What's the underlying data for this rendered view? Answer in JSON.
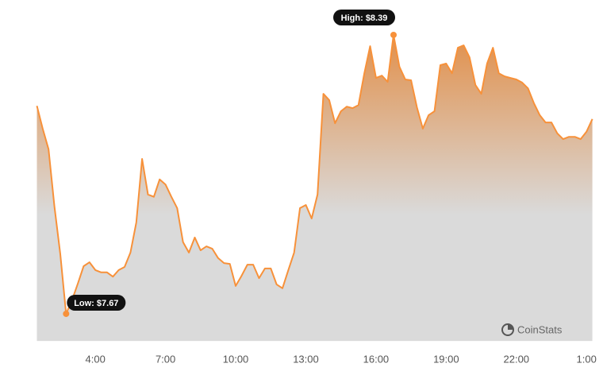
{
  "chart_data": {
    "type": "area",
    "x": [
      1.5,
      1.75,
      2,
      2.25,
      2.5,
      2.75,
      3,
      3.25,
      3.5,
      3.75,
      4,
      4.25,
      4.5,
      4.75,
      5,
      5.25,
      5.5,
      5.75,
      6,
      6.25,
      6.5,
      6.75,
      7,
      7.25,
      7.5,
      7.75,
      8,
      8.25,
      8.5,
      8.75,
      9,
      9.25,
      9.5,
      9.75,
      10,
      10.25,
      10.5,
      10.75,
      11,
      11.25,
      11.5,
      11.75,
      12,
      12.25,
      12.5,
      12.75,
      13,
      13.25,
      13.5,
      13.75,
      14,
      14.25,
      14.5,
      14.75,
      15,
      15.25,
      15.5,
      15.75,
      16,
      16.25,
      16.5,
      16.75,
      17,
      17.25,
      17.5,
      17.75,
      18,
      18.25,
      18.5,
      18.75,
      19,
      19.25,
      19.5,
      19.75,
      20,
      20.25,
      20.5,
      20.75,
      21,
      21.25,
      21.5,
      21.75,
      22,
      22.25,
      22.5,
      22.75,
      23,
      23.25,
      23.5,
      23.75,
      24,
      24.25,
      24.5,
      24.75,
      25,
      25.25
    ],
    "values": [
      8.207,
      8.148,
      8.095,
      7.947,
      7.824,
      7.67,
      7.705,
      7.748,
      7.793,
      7.803,
      7.783,
      7.777,
      7.777,
      7.766,
      7.783,
      7.791,
      7.828,
      7.906,
      8.07,
      7.978,
      7.972,
      8.017,
      8.004,
      7.972,
      7.943,
      7.855,
      7.828,
      7.867,
      7.834,
      7.844,
      7.838,
      7.814,
      7.801,
      7.799,
      7.742,
      7.768,
      7.797,
      7.797,
      7.762,
      7.787,
      7.787,
      7.746,
      7.736,
      7.783,
      7.828,
      7.943,
      7.951,
      7.916,
      7.978,
      8.238,
      8.222,
      8.162,
      8.193,
      8.205,
      8.201,
      8.209,
      8.291,
      8.361,
      8.279,
      8.285,
      8.269,
      8.39,
      8.308,
      8.275,
      8.273,
      8.203,
      8.148,
      8.183,
      8.193,
      8.312,
      8.316,
      8.291,
      8.357,
      8.363,
      8.332,
      8.261,
      8.238,
      8.316,
      8.357,
      8.291,
      8.283,
      8.279,
      8.275,
      8.267,
      8.252,
      8.214,
      8.183,
      8.164,
      8.164,
      8.136,
      8.121,
      8.127,
      8.127,
      8.121,
      8.14,
      8.173
    ],
    "color": "#f7913a",
    "xlim": [
      1.45,
      25.4
    ],
    "xticks": [
      {
        "value": 4,
        "label": "4:00"
      },
      {
        "value": 7,
        "label": "7:00"
      },
      {
        "value": 10,
        "label": "10:00"
      },
      {
        "value": 13,
        "label": "13:00"
      },
      {
        "value": 16,
        "label": "16:00"
      },
      {
        "value": 19,
        "label": "19:00"
      },
      {
        "value": 22,
        "label": "22:00"
      },
      {
        "value": 25,
        "label": "1:00"
      }
    ],
    "ylim": [
      7.6,
      8.44
    ],
    "high_label": "High: $8.39",
    "low_label": "Low: $7.67",
    "watermark": "CoinStats"
  }
}
